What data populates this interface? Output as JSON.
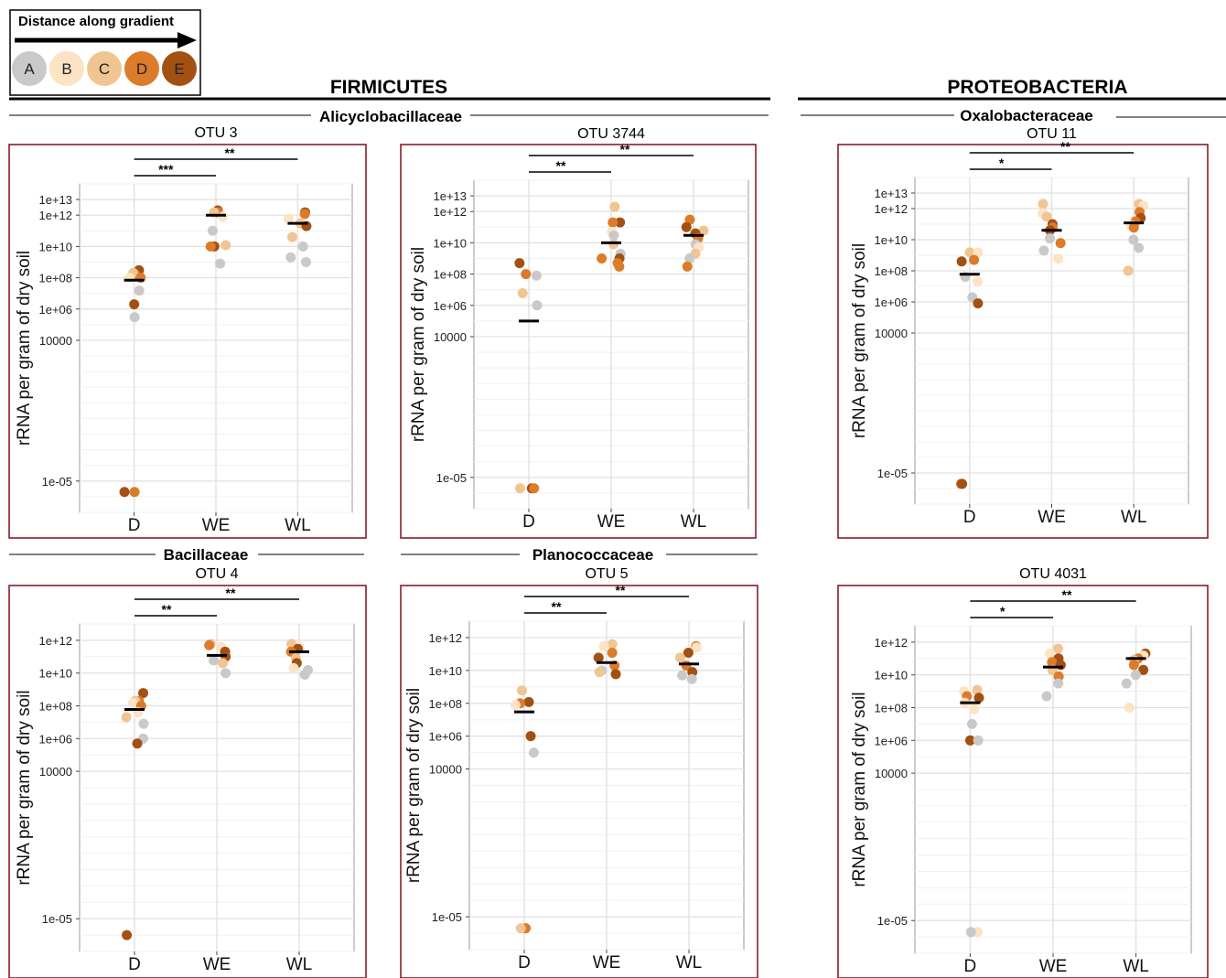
{
  "legend": {
    "title": "Distance along gradient",
    "labels": [
      "A",
      "B",
      "C",
      "D",
      "E"
    ],
    "colors": [
      "#c9c9c9",
      "#fbe3c4",
      "#f0c591",
      "#dc7b2a",
      "#a35013"
    ]
  },
  "phyla": [
    {
      "name": "FIRMICUTES"
    },
    {
      "name": "PROTEOBACTERIA"
    }
  ],
  "families": [
    "Alicyclobacillaceae",
    "Oxalobacteraceae",
    "Bacillaceae",
    "Planococcaceae"
  ],
  "chart_data": [
    {
      "type": "scatter",
      "title": "OTU 3",
      "family": "Alicyclobacillaceae",
      "ylabel": "rRNA per gram of dry soil",
      "yscale": "log10",
      "categories": [
        "D",
        "WE",
        "WL"
      ],
      "yticks": [
        "1e+13",
        "1e+12",
        "1e+10",
        "1e+08",
        "1e+06",
        "10000",
        "1e-05"
      ],
      "ylim": [
        "1e-07",
        "1e+14"
      ],
      "medians": [
        70000000.0,
        1000000000000.0,
        300000000000.0
      ],
      "significance": [
        {
          "from": "D",
          "to": "WE",
          "label": "***"
        },
        {
          "from": "D",
          "to": "WL",
          "label": "**"
        }
      ],
      "points": {
        "D": [
          [
            300000000.0,
            "E"
          ],
          [
            150000000.0,
            "D"
          ],
          [
            200000000.0,
            "C"
          ],
          [
            100000000.0,
            "B"
          ],
          [
            100000000.0,
            "D"
          ],
          [
            15000000.0,
            "A"
          ],
          [
            2000000.0,
            "E"
          ],
          [
            300000.0,
            "A"
          ],
          [
            2e-06,
            "D"
          ],
          [
            2e-06,
            "E"
          ]
        ],
        "WE": [
          [
            2000000000000.0,
            "E"
          ],
          [
            1500000000000.0,
            "D"
          ],
          [
            1500000000000.0,
            "C"
          ],
          [
            800000000000.0,
            "B"
          ],
          [
            100000000000.0,
            "A"
          ],
          [
            10000000000.0,
            "E"
          ],
          [
            10000000000.0,
            "D"
          ],
          [
            12000000000.0,
            "C"
          ],
          [
            800000000.0,
            "A"
          ]
        ],
        "WL": [
          [
            1500000000000.0,
            "E"
          ],
          [
            1200000000000.0,
            "D"
          ],
          [
            600000000000.0,
            "B"
          ],
          [
            300000000000.0,
            "C"
          ],
          [
            200000000000.0,
            "E"
          ],
          [
            40000000000.0,
            "C"
          ],
          [
            10000000000.0,
            "A"
          ],
          [
            2000000000.0,
            "A"
          ],
          [
            1000000000.0,
            "A"
          ]
        ]
      }
    },
    {
      "type": "scatter",
      "title": "OTU 3744",
      "family": "Alicyclobacillaceae",
      "ylabel": "rRNA per gram of dry soil",
      "yscale": "log10",
      "categories": [
        "D",
        "WE",
        "WL"
      ],
      "yticks": [
        "1e+13",
        "1e+12",
        "1e+10",
        "1e+08",
        "1e+06",
        "10000",
        "1e-05"
      ],
      "ylim": [
        "1e-07",
        "1e+14"
      ],
      "medians": [
        100000.0,
        10000000000.0,
        30000000000.0
      ],
      "significance": [
        {
          "from": "D",
          "to": "WE",
          "label": "**"
        },
        {
          "from": "D",
          "to": "WL",
          "label": "**"
        }
      ],
      "points": {
        "D": [
          [
            500000000.0,
            "E"
          ],
          [
            100000000.0,
            "D"
          ],
          [
            80000000.0,
            "A"
          ],
          [
            6000000.0,
            "C"
          ],
          [
            1000000.0,
            "A"
          ],
          [
            2e-06,
            "E"
          ],
          [
            2e-06,
            "D"
          ],
          [
            2e-06,
            "C"
          ]
        ],
        "WE": [
          [
            2000000000000.0,
            "C"
          ],
          [
            200000000000.0,
            "E"
          ],
          [
            200000000000.0,
            "D"
          ],
          [
            50000000000.0,
            "B"
          ],
          [
            30000000000.0,
            "A"
          ],
          [
            8000000000.0,
            "C"
          ],
          [
            2000000000.0,
            "A"
          ],
          [
            1000000000.0,
            "E"
          ],
          [
            1000000000.0,
            "D"
          ],
          [
            500000000.0,
            "D"
          ],
          [
            300000000.0,
            "D"
          ]
        ],
        "WL": [
          [
            300000000000.0,
            "D"
          ],
          [
            100000000000.0,
            "E"
          ],
          [
            60000000000.0,
            "C"
          ],
          [
            40000000000.0,
            "E"
          ],
          [
            20000000000.0,
            "D"
          ],
          [
            8000000000.0,
            "A"
          ],
          [
            5000000000.0,
            "B"
          ],
          [
            2000000000.0,
            "C"
          ],
          [
            1000000000.0,
            "A"
          ],
          [
            300000000.0,
            "D"
          ]
        ]
      }
    },
    {
      "type": "scatter",
      "title": "OTU 11",
      "family": "Oxalobacteraceae",
      "ylabel": "rRNA per gram of dry soil",
      "yscale": "log10",
      "categories": [
        "D",
        "WE",
        "WL"
      ],
      "yticks": [
        "1e+13",
        "1e+12",
        "1e+10",
        "1e+08",
        "1e+06",
        "10000",
        "1e-05"
      ],
      "ylim": [
        "1e-07",
        "1e+14"
      ],
      "medians": [
        60000000.0,
        40000000000.0,
        120000000000.0
      ],
      "significance": [
        {
          "from": "D",
          "to": "WE",
          "label": "*"
        },
        {
          "from": "D",
          "to": "WL",
          "label": "**"
        }
      ],
      "points": {
        "D": [
          [
            1500000000.0,
            "C"
          ],
          [
            1500000000.0,
            "B"
          ],
          [
            500000000.0,
            "D"
          ],
          [
            400000000.0,
            "E"
          ],
          [
            40000000.0,
            "A"
          ],
          [
            20000000.0,
            "B"
          ],
          [
            2000000.0,
            "A"
          ],
          [
            800000.0,
            "E"
          ],
          [
            2e-06,
            "D"
          ],
          [
            2e-06,
            "E"
          ]
        ],
        "WE": [
          [
            2000000000000.0,
            "C"
          ],
          [
            500000000000.0,
            "B"
          ],
          [
            300000000000.0,
            "C"
          ],
          [
            100000000000.0,
            "E"
          ],
          [
            60000000000.0,
            "D"
          ],
          [
            40000000000.0,
            "E"
          ],
          [
            12000000000.0,
            "A"
          ],
          [
            6000000000.0,
            "D"
          ],
          [
            2000000000.0,
            "A"
          ],
          [
            600000000.0,
            "B"
          ]
        ],
        "WL": [
          [
            2000000000000.0,
            "C"
          ],
          [
            1500000000000.0,
            "B"
          ],
          [
            600000000000.0,
            "D"
          ],
          [
            250000000000.0,
            "E"
          ],
          [
            150000000000.0,
            "D"
          ],
          [
            80000000000.0,
            "B"
          ],
          [
            60000000000.0,
            "D"
          ],
          [
            10000000000.0,
            "A"
          ],
          [
            3000000000.0,
            "A"
          ],
          [
            100000000.0,
            "C"
          ]
        ]
      }
    },
    {
      "type": "scatter",
      "title": "OTU 4",
      "family": "Bacillaceae",
      "ylabel": "rRNA per gram of dry soil",
      "yscale": "log10",
      "categories": [
        "D",
        "WE",
        "WL"
      ],
      "yticks": [
        "1e+12",
        "1e+10",
        "1e+08",
        "1e+06",
        "10000",
        "1e-05"
      ],
      "ylim": [
        "1e-07",
        "1e+13"
      ],
      "medians": [
        60000000.0,
        120000000000.0,
        200000000000.0
      ],
      "significance": [
        {
          "from": "D",
          "to": "WE",
          "label": "**"
        },
        {
          "from": "D",
          "to": "WL",
          "label": "**"
        }
      ],
      "points": {
        "D": [
          [
            600000000.0,
            "E"
          ],
          [
            200000000.0,
            "D"
          ],
          [
            200000000.0,
            "C"
          ],
          [
            150000000.0,
            "B"
          ],
          [
            100000000.0,
            "D"
          ],
          [
            40000000.0,
            "B"
          ],
          [
            20000000.0,
            "C"
          ],
          [
            8000000.0,
            "A"
          ],
          [
            1000000.0,
            "A"
          ],
          [
            500000.0,
            "E"
          ],
          [
            1e-06,
            "E"
          ]
        ],
        "WE": [
          [
            600000000000.0,
            "C"
          ],
          [
            500000000000.0,
            "D"
          ],
          [
            400000000000.0,
            "B"
          ],
          [
            200000000000.0,
            "E"
          ],
          [
            100000000000.0,
            "E"
          ],
          [
            60000000000.0,
            "A"
          ],
          [
            40000000000.0,
            "C"
          ],
          [
            10000000000.0,
            "A"
          ]
        ],
        "WL": [
          [
            600000000000.0,
            "C"
          ],
          [
            400000000000.0,
            "B"
          ],
          [
            300000000000.0,
            "E"
          ],
          [
            200000000000.0,
            "D"
          ],
          [
            80000000000.0,
            "C"
          ],
          [
            40000000000.0,
            "E"
          ],
          [
            20000000000.0,
            "B"
          ],
          [
            15000000000.0,
            "A"
          ],
          [
            8000000000.0,
            "A"
          ]
        ]
      }
    },
    {
      "type": "scatter",
      "title": "OTU 5",
      "family": "Planococcaceae",
      "ylabel": "rRNA per gram of dry soil",
      "yscale": "log10",
      "categories": [
        "D",
        "WE",
        "WL"
      ],
      "yticks": [
        "1e+12",
        "1e+10",
        "1e+08",
        "1e+06",
        "10000",
        "1e-05"
      ],
      "ylim": [
        "1e-07",
        "1e+13"
      ],
      "medians": [
        30000000.0,
        30000000000.0,
        25000000000.0
      ],
      "significance": [
        {
          "from": "D",
          "to": "WE",
          "label": "**"
        },
        {
          "from": "D",
          "to": "WL",
          "label": "**"
        }
      ],
      "points": {
        "D": [
          [
            600000000.0,
            "C"
          ],
          [
            120000000.0,
            "E"
          ],
          [
            100000000.0,
            "D"
          ],
          [
            80000000.0,
            "B"
          ],
          [
            1000000.0,
            "E"
          ],
          [
            100000.0,
            "A"
          ],
          [
            2e-06,
            "D"
          ],
          [
            2e-06,
            "C"
          ]
        ],
        "WE": [
          [
            400000000000.0,
            "C"
          ],
          [
            300000000000.0,
            "B"
          ],
          [
            120000000000.0,
            "D"
          ],
          [
            60000000000.0,
            "E"
          ],
          [
            20000000000.0,
            "D"
          ],
          [
            10000000000.0,
            "A"
          ],
          [
            8000000000.0,
            "C"
          ],
          [
            6000000000.0,
            "E"
          ]
        ],
        "WL": [
          [
            300000000000.0,
            "D"
          ],
          [
            250000000000.0,
            "B"
          ],
          [
            120000000000.0,
            "E"
          ],
          [
            60000000000.0,
            "C"
          ],
          [
            20000000000.0,
            "D"
          ],
          [
            8000000000.0,
            "E"
          ],
          [
            5000000000.0,
            "A"
          ],
          [
            3000000000.0,
            "A"
          ]
        ]
      }
    },
    {
      "type": "scatter",
      "title": "OTU 4031",
      "family": "Oxalobacteraceae",
      "ylabel": "rRNA per gram of dry soil",
      "yscale": "log10",
      "categories": [
        "D",
        "WE",
        "WL"
      ],
      "yticks": [
        "1e+12",
        "1e+10",
        "1e+08",
        "1e+06",
        "10000",
        "1e-05"
      ],
      "ylim": [
        "1e-07",
        "1e+13"
      ],
      "medians": [
        200000000.0,
        30000000000.0,
        100000000000.0
      ],
      "significance": [
        {
          "from": "D",
          "to": "WE",
          "label": "*"
        },
        {
          "from": "D",
          "to": "WL",
          "label": "**"
        }
      ],
      "points": {
        "D": [
          [
            1200000000.0,
            "C"
          ],
          [
            1000000000.0,
            "B"
          ],
          [
            500000000.0,
            "D"
          ],
          [
            400000000.0,
            "E"
          ],
          [
            200000000.0,
            "B"
          ],
          [
            80000000.0,
            "B"
          ],
          [
            10000000.0,
            "A"
          ],
          [
            1000000.0,
            "E"
          ],
          [
            1000000.0,
            "A"
          ],
          [
            2e-06,
            "B"
          ],
          [
            2e-06,
            "A"
          ]
        ],
        "WE": [
          [
            400000000000.0,
            "C"
          ],
          [
            200000000000.0,
            "B"
          ],
          [
            100000000000.0,
            "E"
          ],
          [
            60000000000.0,
            "D"
          ],
          [
            40000000000.0,
            "E"
          ],
          [
            20000000000.0,
            "C"
          ],
          [
            8000000000.0,
            "D"
          ],
          [
            3000000000.0,
            "A"
          ],
          [
            500000000.0,
            "A"
          ]
        ],
        "WL": [
          [
            200000000000.0,
            "E"
          ],
          [
            150000000000.0,
            "B"
          ],
          [
            100000000000.0,
            "D"
          ],
          [
            80000000000.0,
            "C"
          ],
          [
            40000000000.0,
            "D"
          ],
          [
            20000000000.0,
            "E"
          ],
          [
            10000000000.0,
            "A"
          ],
          [
            3000000000.0,
            "A"
          ],
          [
            100000000.0,
            "B"
          ]
        ]
      }
    }
  ]
}
